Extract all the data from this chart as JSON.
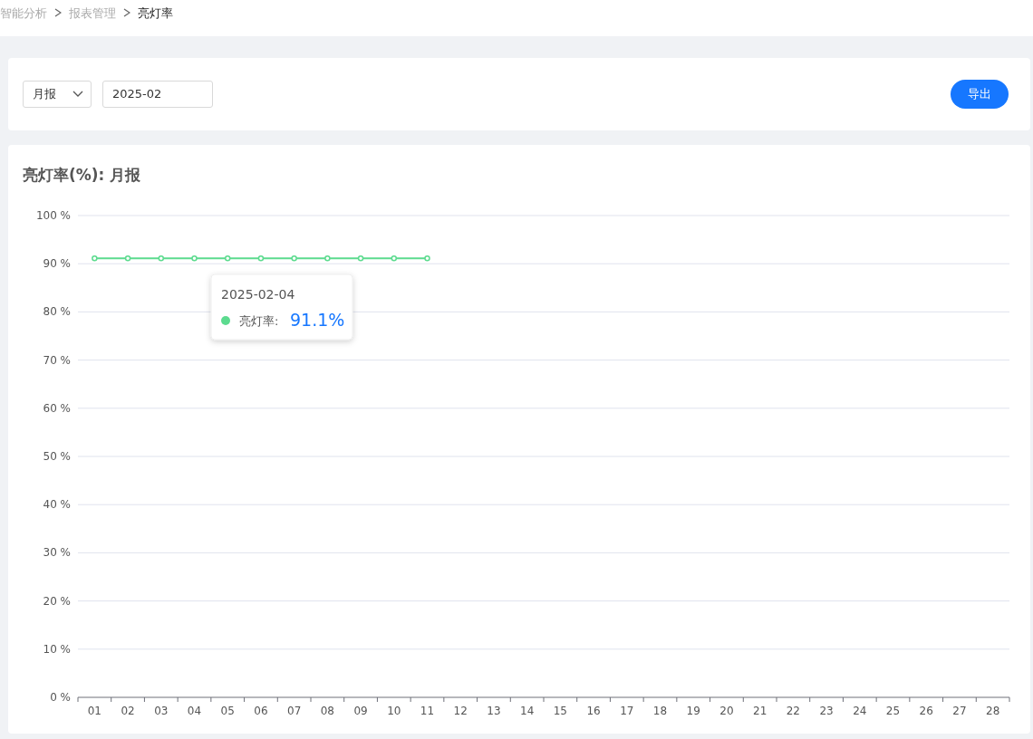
{
  "chart_data": {
    "type": "line",
    "title": "亮灯率(%): 月报",
    "categories": [
      "01",
      "02",
      "03",
      "04",
      "05",
      "06",
      "07",
      "08",
      "09",
      "10",
      "11",
      "12",
      "13",
      "14",
      "15",
      "16",
      "17",
      "18",
      "19",
      "20",
      "21",
      "22",
      "23",
      "24",
      "25",
      "26",
      "27",
      "28"
    ],
    "series": [
      {
        "color": "#5cdb8f",
        "values": [
          91.1,
          91.1,
          91.1,
          91.1,
          91.1,
          91.1,
          91.1,
          91.1,
          91.1,
          91.1,
          91.1,
          null,
          null,
          null,
          null,
          null,
          null,
          null,
          null,
          null,
          null,
          null,
          null,
          null,
          null,
          null,
          null,
          null
        ]
      }
    ],
    "ylim": [
      0,
      100
    ],
    "yticks": [
      {
        "value": 0,
        "label": "0 %"
      },
      {
        "value": 10,
        "label": "10 %"
      },
      {
        "value": 20,
        "label": "20 %"
      },
      {
        "value": 30,
        "label": "30 %"
      },
      {
        "value": 40,
        "label": "40 %"
      },
      {
        "value": 50,
        "label": "50 %"
      },
      {
        "value": 60,
        "label": "60 %"
      },
      {
        "value": 70,
        "label": "70 %"
      },
      {
        "value": 80,
        "label": "80 %"
      },
      {
        "value": 90,
        "label": "90 %"
      },
      {
        "value": 100,
        "label": "100 %"
      }
    ],
    "grid": "y",
    "marker": "circle",
    "line_style": "solid",
    "annotations": [
      "智能分析",
      "报表管理",
      "亮灯率",
      "月报",
      "2025-02",
      "导出",
      "2025-02-04",
      "亮灯率:",
      "91.1%"
    ]
  }
}
